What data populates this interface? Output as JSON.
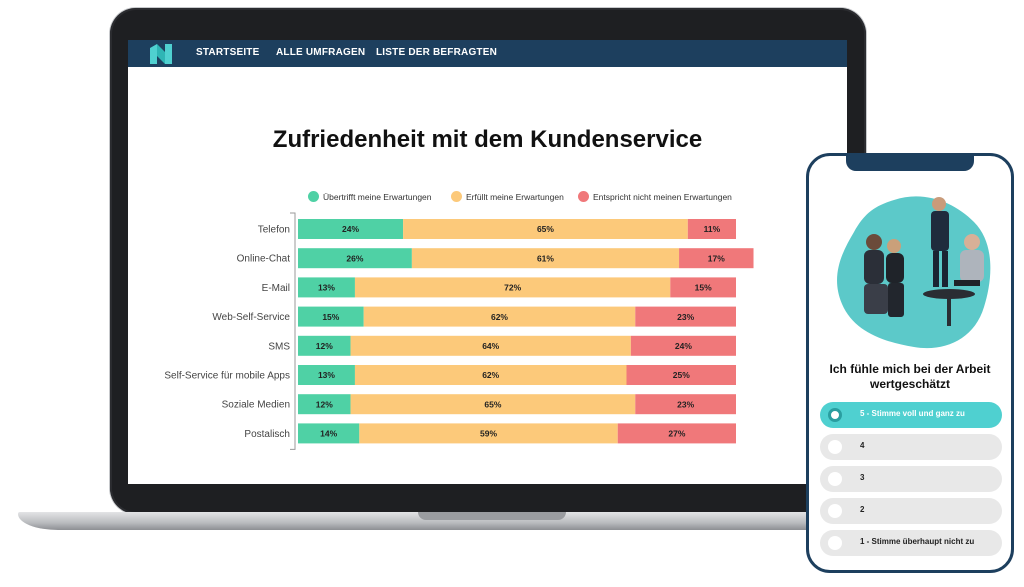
{
  "nav": {
    "items": [
      "STARTSEITE",
      "ALLE UMFRAGEN",
      "LISTE DER BEFRAGTEN"
    ]
  },
  "colors": {
    "nav_bg": "#1d3f5e",
    "green": "#4fd1a5",
    "yellow": "#fcc97a",
    "red": "#f0787a",
    "teal": "#4fd0d0"
  },
  "chart_data": {
    "type": "bar",
    "orientation": "horizontal",
    "stacked": true,
    "percent": true,
    "title": "Zufriedenheit mit dem Kundenservice",
    "categories": [
      "Telefon",
      "Online-Chat",
      "E-Mail",
      "Web-Self-Service",
      "SMS",
      "Self-Service für mobile Apps",
      "Soziale Medien",
      "Postalisch"
    ],
    "series": [
      {
        "name": "Übertrifft meine Erwartungen",
        "color": "#4fd1a5",
        "values": [
          24,
          26,
          13,
          15,
          12,
          13,
          12,
          14
        ]
      },
      {
        "name": "Erfüllt meine Erwartungen",
        "color": "#fcc97a",
        "values": [
          65,
          61,
          72,
          62,
          64,
          62,
          65,
          59
        ]
      },
      {
        "name": "Entspricht nicht meinen Erwartungen",
        "color": "#f0787a",
        "values": [
          11,
          17,
          15,
          23,
          24,
          25,
          23,
          27
        ]
      }
    ],
    "value_suffix": "%",
    "legend_position": "top",
    "grid": false
  },
  "phone": {
    "question": "Ich fühle mich bei der Arbeit wertgeschätzt",
    "options": [
      {
        "label": "5 - Stimme voll und ganz zu",
        "selected": true
      },
      {
        "label": "4",
        "selected": false
      },
      {
        "label": "3",
        "selected": false
      },
      {
        "label": "2",
        "selected": false
      },
      {
        "label": "1 - Stimme überhaupt nicht zu",
        "selected": false
      }
    ]
  }
}
